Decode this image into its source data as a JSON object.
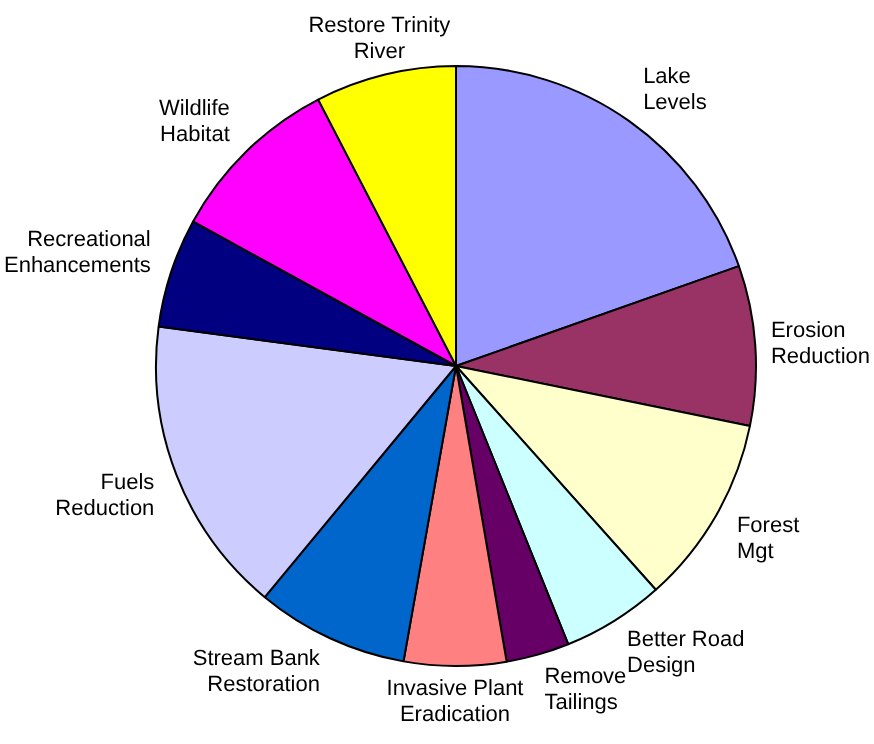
{
  "chart_data": {
    "type": "pie",
    "categories": [
      "Lake Levels",
      "Erosion Reduction",
      "Forest Mgt",
      "Better Road Design",
      "Remove Tailings",
      "Invasive Plant Eradication",
      "Stream Bank Restoration",
      "Fuels Reduction",
      "Recreational Enhancements",
      "Wildlife Habitat",
      "Restore Trinity River"
    ],
    "values": [
      19.6,
      8.6,
      10.2,
      5.5,
      3.4,
      5.5,
      8.2,
      16.1,
      5.9,
      9.4,
      7.6
    ],
    "colors": [
      "#9999ff",
      "#993366",
      "#ffffcc",
      "#ccffff",
      "#660066",
      "#ff8080",
      "#0066cc",
      "#ccccff",
      "#000080",
      "#ff00ff",
      "#ffff00"
    ],
    "legend": false
  }
}
